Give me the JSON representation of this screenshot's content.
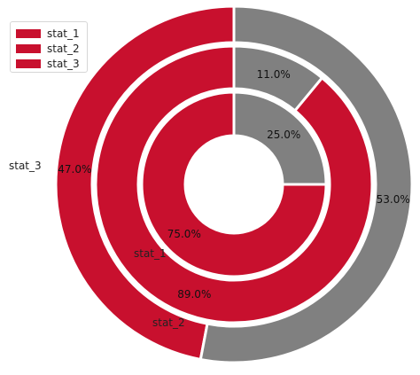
{
  "chart_data": {
    "type": "pie",
    "subtype": "nested-donut",
    "colors": {
      "primary": "#c8102e",
      "secondary": "#808080"
    },
    "rings": [
      {
        "name": "stat_1",
        "values": [
          75.0,
          25.0
        ],
        "labels": [
          "75.0%",
          "25.0%"
        ]
      },
      {
        "name": "stat_2",
        "values": [
          89.0,
          11.0
        ],
        "labels": [
          "89.0%",
          "11.0%"
        ]
      },
      {
        "name": "stat_3",
        "values": [
          47.0,
          53.0
        ],
        "labels": [
          "47.0%",
          "53.0%"
        ]
      }
    ],
    "legend": {
      "placement": "top-left",
      "entries": [
        "stat_1",
        "stat_2",
        "stat_3"
      ]
    }
  }
}
